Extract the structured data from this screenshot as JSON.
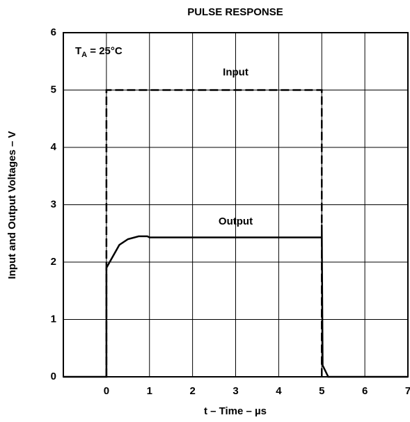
{
  "chart_data": {
    "type": "line",
    "title": "PULSE RESPONSE",
    "x_label": "t – Time – µs",
    "y_label": "Input and Output Voltages – V",
    "xlim": [
      -1,
      7
    ],
    "xticks": [
      0,
      1,
      2,
      3,
      4,
      5,
      6,
      7
    ],
    "ylim": [
      0,
      6
    ],
    "yticks": [
      0,
      1,
      2,
      3,
      4,
      5,
      6
    ],
    "grid": true,
    "condition": {
      "symbol": "T",
      "subscript": "A",
      "text": " = 25°C"
    },
    "series": [
      {
        "name": "Input",
        "color": "#000000",
        "dashed": true,
        "label_x": 3,
        "label_y": 5.3,
        "x": [
          0,
          0,
          5,
          5
        ],
        "values": [
          0,
          5,
          5,
          0
        ]
      },
      {
        "name": "Output",
        "color": "#000000",
        "dashed": false,
        "label_x": 3,
        "label_y": 2.7,
        "x": [
          -1,
          0,
          0,
          0.15,
          0.3,
          0.5,
          0.75,
          0.95,
          1,
          5,
          5,
          5.02,
          5.15,
          7
        ],
        "values": [
          0,
          0,
          1.9,
          2.1,
          2.3,
          2.4,
          2.45,
          2.45,
          2.43,
          2.43,
          2.65,
          0.2,
          0,
          0
        ]
      }
    ]
  }
}
